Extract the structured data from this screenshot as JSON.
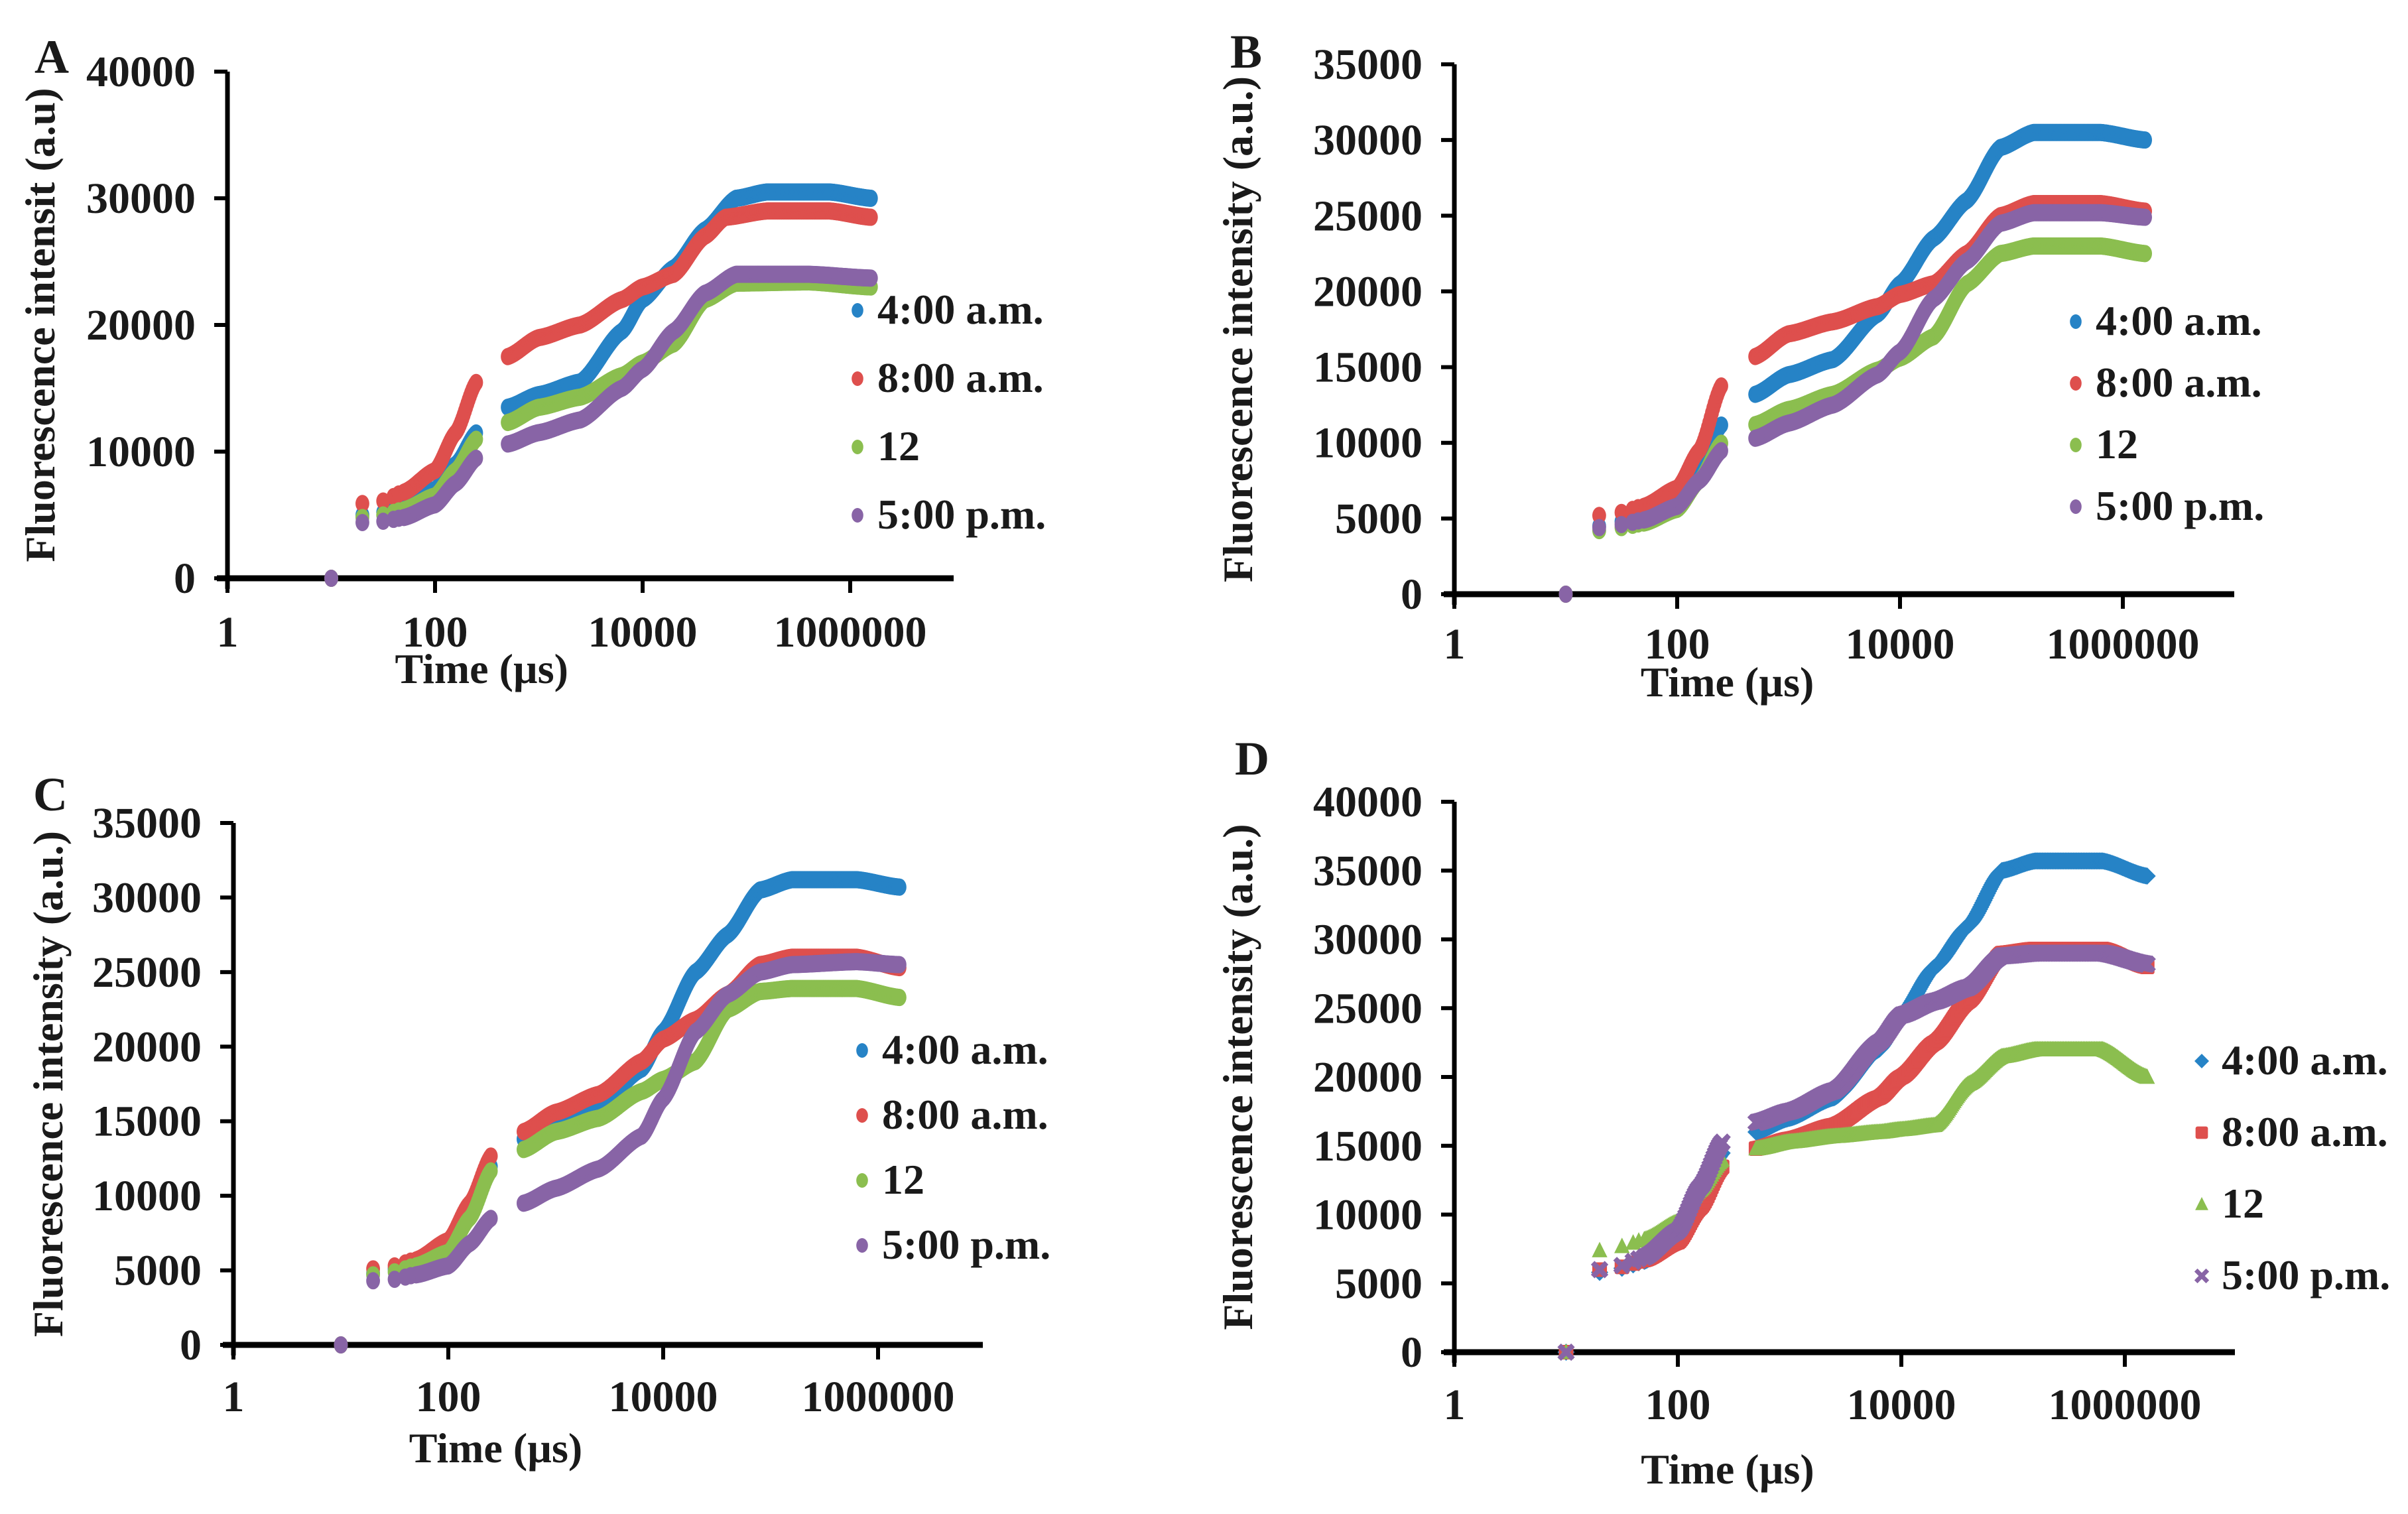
{
  "series_colors": {
    "4:00 a.m.": "#2683C6",
    "8:00 a.m.": "#DE4F4D",
    "12": "#8BBE4F",
    "5:00 p.m.": "#8864A6"
  },
  "chart_data": [
    {
      "panel": "A",
      "type": "scatter",
      "title": "",
      "xlabel": "Time (µs)",
      "ylabel": "Fluorescence intensit (a.u)",
      "xscale": "log",
      "xlim": [
        1,
        10000000
      ],
      "xticks": [
        "1",
        "100",
        "10000",
        "1000000"
      ],
      "ylim": [
        0,
        40000
      ],
      "yticks": [
        "0",
        "10000",
        "20000",
        "30000",
        "40000"
      ],
      "grid": false,
      "legend_position": "right",
      "marker": "circle",
      "series": [
        {
          "name": "4:00 a.m.",
          "marker": "circle",
          "log10_x": [
            1.0,
            1.3,
            1.5,
            1.7,
            2.0,
            2.2,
            2.4,
            2.7,
            3.0,
            3.4,
            3.8,
            4.0,
            4.3,
            4.6,
            4.9,
            5.2,
            5.8,
            6.2
          ],
          "values": [
            0,
            5000,
            5200,
            5800,
            7000,
            9000,
            11500,
            13500,
            14500,
            15500,
            19500,
            22000,
            24500,
            27500,
            30000,
            30500,
            30500,
            30000
          ]
        },
        {
          "name": "8:00 a.m.",
          "marker": "circle",
          "log10_x": [
            1.0,
            1.3,
            1.5,
            1.7,
            2.0,
            2.2,
            2.4,
            2.7,
            3.0,
            3.4,
            3.8,
            4.0,
            4.3,
            4.6,
            4.8,
            5.2,
            5.8,
            6.2
          ],
          "values": [
            0,
            5900,
            6100,
            6800,
            8500,
            11500,
            15500,
            17500,
            19000,
            20000,
            22000,
            23000,
            24000,
            27000,
            28500,
            29000,
            29000,
            28500
          ]
        },
        {
          "name": "12",
          "marker": "circle",
          "log10_x": [
            1.0,
            1.3,
            1.5,
            1.7,
            2.0,
            2.2,
            2.4,
            2.7,
            3.0,
            3.4,
            3.8,
            4.0,
            4.3,
            4.6,
            4.9,
            5.6,
            6.2
          ],
          "values": [
            0,
            4800,
            5000,
            5400,
            6500,
            8500,
            11000,
            12300,
            13500,
            14300,
            16000,
            17000,
            18500,
            22000,
            23300,
            23400,
            23000
          ]
        },
        {
          "name": "5:00 p.m.",
          "marker": "circle",
          "log10_x": [
            1.0,
            1.3,
            1.5,
            1.7,
            2.0,
            2.2,
            2.4,
            2.7,
            3.0,
            3.4,
            3.8,
            4.0,
            4.3,
            4.6,
            4.9,
            5.6,
            6.2
          ],
          "values": [
            0,
            4400,
            4500,
            4800,
            5800,
            7500,
            9500,
            10600,
            11500,
            12500,
            15000,
            16500,
            19500,
            22500,
            24000,
            24000,
            23700
          ]
        }
      ]
    },
    {
      "panel": "B",
      "type": "scatter",
      "title": "",
      "xlabel": "Time (µs)",
      "ylabel": "Fluorescence intensity (a.u.)",
      "xscale": "log",
      "xlim": [
        1,
        10000000
      ],
      "xticks": [
        "1",
        "100",
        "10000",
        "1000000"
      ],
      "ylim": [
        0,
        35000
      ],
      "yticks": [
        "0",
        "5000",
        "10000",
        "15000",
        "20000",
        "25000",
        "30000",
        "35000"
      ],
      "grid": false,
      "legend_position": "right",
      "marker": "circle",
      "series": [
        {
          "name": "4:00 a.m.",
          "marker": "circle",
          "log10_x": [
            1.0,
            1.3,
            1.5,
            1.7,
            2.0,
            2.2,
            2.4,
            2.7,
            3.0,
            3.4,
            3.8,
            4.0,
            4.3,
            4.6,
            4.9,
            5.2,
            5.8,
            6.2
          ],
          "values": [
            0,
            4500,
            4800,
            5300,
            6500,
            8500,
            11200,
            13200,
            14500,
            15500,
            18500,
            20500,
            23500,
            26000,
            29500,
            30500,
            30500,
            30000
          ]
        },
        {
          "name": "8:00 a.m.",
          "marker": "circle",
          "log10_x": [
            1.0,
            1.3,
            1.5,
            1.7,
            2.0,
            2.2,
            2.4,
            2.7,
            3.0,
            3.4,
            3.8,
            4.0,
            4.3,
            4.6,
            4.9,
            5.2,
            5.8,
            6.2
          ],
          "values": [
            0,
            5200,
            5400,
            5800,
            7000,
            9500,
            13800,
            15700,
            17200,
            18000,
            19000,
            19800,
            20500,
            22500,
            25000,
            25800,
            25800,
            25300
          ]
        },
        {
          "name": "12",
          "marker": "circle",
          "log10_x": [
            1.0,
            1.3,
            1.5,
            1.7,
            2.0,
            2.2,
            2.4,
            2.7,
            3.0,
            3.4,
            3.8,
            4.0,
            4.3,
            4.6,
            4.9,
            5.2,
            5.8,
            6.2
          ],
          "values": [
            0,
            4200,
            4400,
            4700,
            5600,
            7500,
            10000,
            11200,
            12200,
            13200,
            14800,
            15600,
            17000,
            20500,
            22500,
            23000,
            23000,
            22500
          ]
        },
        {
          "name": "5:00 p.m.",
          "marker": "circle",
          "log10_x": [
            1.0,
            1.3,
            1.5,
            1.7,
            2.0,
            2.2,
            2.4,
            2.7,
            3.0,
            3.4,
            3.8,
            4.0,
            4.3,
            4.6,
            4.9,
            5.2,
            5.8,
            6.2
          ],
          "values": [
            0,
            4400,
            4600,
            4900,
            5800,
            7500,
            9500,
            10300,
            11300,
            12500,
            14500,
            16000,
            19500,
            22000,
            24500,
            25200,
            25200,
            24900
          ]
        }
      ]
    },
    {
      "panel": "C",
      "type": "scatter",
      "title": "",
      "xlabel": "Time (µs)",
      "ylabel": "Fluorescence intensity (a.u.)",
      "xscale": "log",
      "xlim": [
        1,
        10000000
      ],
      "xticks": [
        "1",
        "100",
        "10000",
        "1000000"
      ],
      "ylim": [
        0,
        35000
      ],
      "yticks": [
        "0",
        "5000",
        "10000",
        "15000",
        "20000",
        "25000",
        "30000",
        "35000"
      ],
      "grid": false,
      "legend_position": "right",
      "marker": "circle",
      "series": [
        {
          "name": "4:00 a.m.",
          "marker": "circle",
          "log10_x": [
            1.0,
            1.3,
            1.5,
            1.7,
            2.0,
            2.2,
            2.4,
            2.7,
            3.0,
            3.4,
            3.8,
            4.0,
            4.3,
            4.6,
            4.9,
            5.2,
            5.8,
            6.2
          ],
          "values": [
            0,
            4800,
            5100,
            5500,
            6800,
            9000,
            12000,
            13800,
            15000,
            16000,
            18500,
            21000,
            25000,
            27500,
            30500,
            31200,
            31200,
            30700
          ]
        },
        {
          "name": "8:00 a.m.",
          "marker": "circle",
          "log10_x": [
            1.0,
            1.3,
            1.5,
            1.7,
            2.0,
            2.2,
            2.4,
            2.7,
            3.0,
            3.4,
            3.8,
            4.0,
            4.3,
            4.6,
            4.9,
            5.2,
            5.8,
            6.2
          ],
          "values": [
            0,
            5100,
            5300,
            5700,
            7000,
            9500,
            12700,
            14300,
            15600,
            16800,
            19000,
            20500,
            21800,
            23500,
            25500,
            26000,
            26000,
            25300
          ]
        },
        {
          "name": "12",
          "marker": "circle",
          "log10_x": [
            1.0,
            1.3,
            1.5,
            1.7,
            2.0,
            2.2,
            2.4,
            2.7,
            3.0,
            3.4,
            3.8,
            4.0,
            4.3,
            4.6,
            4.9,
            5.2,
            5.8,
            6.2
          ],
          "values": [
            0,
            4700,
            4900,
            5300,
            6200,
            8500,
            11700,
            13100,
            14300,
            15200,
            17000,
            17800,
            19000,
            22500,
            23700,
            23900,
            23900,
            23300
          ]
        },
        {
          "name": "5:00 p.m.",
          "marker": "circle",
          "log10_x": [
            1.0,
            1.3,
            1.5,
            1.7,
            2.0,
            2.2,
            2.4,
            2.7,
            3.0,
            3.4,
            3.8,
            4.0,
            4.3,
            4.6,
            4.9,
            5.2,
            5.8,
            6.2
          ],
          "values": [
            0,
            4300,
            4400,
            4700,
            5300,
            6800,
            8500,
            9500,
            10500,
            11800,
            14000,
            16500,
            21000,
            23500,
            25000,
            25500,
            25700,
            25500
          ]
        }
      ]
    },
    {
      "panel": "D",
      "type": "scatter",
      "title": "",
      "xlabel": "Time (µs)",
      "ylabel": "Fluorescence intensity (a.u.)",
      "xscale": "log",
      "xlim": [
        1,
        10000000
      ],
      "xticks": [
        "1",
        "100",
        "10000",
        "1000000"
      ],
      "ylim": [
        0,
        40000
      ],
      "yticks": [
        "0",
        "5000",
        "10000",
        "15000",
        "20000",
        "25000",
        "30000",
        "35000",
        "40000"
      ],
      "grid": false,
      "legend_position": "right",
      "series": [
        {
          "name": "4:00 a.m.",
          "marker": "diamond",
          "log10_x": [
            1.0,
            1.3,
            1.5,
            1.7,
            2.0,
            2.2,
            2.4,
            2.7,
            3.0,
            3.4,
            3.8,
            4.0,
            4.3,
            4.6,
            4.9,
            5.2,
            5.8,
            6.2
          ],
          "values": [
            0,
            5800,
            6100,
            6600,
            8500,
            11500,
            14500,
            16000,
            17000,
            18500,
            22000,
            24500,
            28000,
            31000,
            35000,
            35700,
            35700,
            34600
          ]
        },
        {
          "name": "8:00 a.m.",
          "marker": "square",
          "log10_x": [
            1.0,
            1.3,
            1.5,
            1.7,
            2.0,
            2.2,
            2.4,
            2.7,
            3.0,
            3.4,
            3.8,
            4.0,
            4.3,
            4.6,
            4.9,
            5.2,
            5.8,
            6.2
          ],
          "values": [
            0,
            6000,
            6200,
            6700,
            8000,
            10500,
            13500,
            14800,
            15500,
            16500,
            18500,
            20000,
            22500,
            25500,
            29000,
            29300,
            29300,
            28000
          ]
        },
        {
          "name": "12",
          "marker": "triangle",
          "log10_x": [
            1.0,
            1.3,
            1.5,
            1.7,
            2.0,
            2.2,
            2.4,
            2.7,
            3.0,
            3.4,
            3.8,
            4.0,
            4.3,
            4.6,
            4.9,
            5.2,
            5.8,
            6.2
          ],
          "values": [
            0,
            7400,
            7700,
            8200,
            9500,
            11800,
            14000,
            14800,
            15300,
            15700,
            16000,
            16200,
            16500,
            19500,
            21500,
            22000,
            22000,
            20000
          ]
        },
        {
          "name": "5:00 p.m.",
          "marker": "x",
          "log10_x": [
            1.0,
            1.3,
            1.5,
            1.7,
            2.0,
            2.2,
            2.4,
            2.7,
            3.0,
            3.4,
            3.8,
            4.0,
            4.3,
            4.6,
            4.9,
            5.2,
            5.8,
            6.2
          ],
          "values": [
            0,
            6000,
            6300,
            6900,
            8800,
            12000,
            15300,
            16700,
            17500,
            19000,
            22500,
            24500,
            25500,
            26500,
            28800,
            29000,
            29000,
            28200
          ]
        }
      ]
    }
  ]
}
